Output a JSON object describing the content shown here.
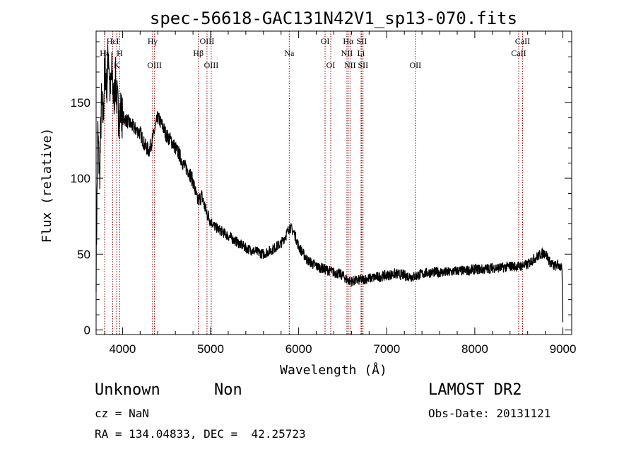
{
  "title": "spec-56618-GAC131N42V1_sp13-070.fits",
  "info": {
    "class": "Unknown",
    "subclass": "Non",
    "cz": "cz = NaN",
    "coords": "RA = 134.04833, DEC =  42.25723",
    "survey": "LAMOST DR2",
    "obs_date": "Obs-Date: 20131121"
  },
  "colors": {
    "spectrum": "#000000",
    "line_marker": "#8b0000",
    "axes": "#000000"
  },
  "chart_data": {
    "type": "line",
    "title": "spec-56618-GAC131N42V1_sp13-070.fits",
    "xlabel": "Wavelength (Å)",
    "ylabel": "Flux (relative)",
    "xlim": [
      3700,
      9100
    ],
    "ylim": [
      -3,
      197
    ],
    "xticks": [
      4000,
      5000,
      6000,
      7000,
      8000,
      9000
    ],
    "yticks": [
      0,
      50,
      100,
      150
    ],
    "grid": false,
    "series": [
      {
        "x": [
          3700,
          3720,
          3740,
          3760,
          3780,
          3800,
          3820,
          3840,
          3860,
          3880,
          3900,
          3920,
          3940,
          3960,
          3980,
          4000,
          4050,
          4100,
          4150,
          4200,
          4250,
          4300,
          4350,
          4400,
          4450,
          4500,
          4550,
          4600,
          4650,
          4700,
          4750,
          4800,
          4850,
          4900,
          4950,
          5000,
          5050,
          5100,
          5150,
          5200,
          5300,
          5400,
          5500,
          5600,
          5700,
          5800,
          5850,
          5900,
          5950,
          6000,
          6100,
          6200,
          6300,
          6400,
          6500,
          6550,
          6600,
          6700,
          6800,
          6900,
          7000,
          7100,
          7200,
          7300,
          7400,
          7500,
          7600,
          7700,
          7800,
          7900,
          8000,
          8100,
          8200,
          8300,
          8400,
          8500,
          8600,
          8650,
          8700,
          8750,
          8800,
          8850,
          8900,
          8950,
          8990,
          9000
        ],
        "y": [
          40,
          130,
          100,
          150,
          140,
          175,
          160,
          185,
          155,
          170,
          150,
          165,
          150,
          140,
          145,
          140,
          138,
          135,
          132,
          130,
          122,
          118,
          128,
          140,
          135,
          128,
          125,
          120,
          115,
          108,
          105,
          98,
          85,
          88,
          78,
          72,
          68,
          66,
          64,
          62,
          58,
          54,
          52,
          50,
          53,
          57,
          62,
          68,
          64,
          55,
          46,
          42,
          40,
          38,
          36,
          33,
          32,
          33,
          34,
          35,
          36,
          37,
          36,
          35,
          37,
          38,
          38,
          38,
          39,
          39,
          40,
          40,
          41,
          41,
          42,
          42,
          43,
          46,
          48,
          50,
          51,
          45,
          42,
          43,
          40,
          5
        ]
      }
    ],
    "lines": [
      {
        "label": "Hε",
        "x": 3797,
        "row": 2
      },
      {
        "label": "HεI",
        "x": 3889,
        "row": 1
      },
      {
        "label": "K",
        "x": 3934,
        "row": 3
      },
      {
        "label": "H",
        "x": 3968,
        "row": 2
      },
      {
        "label": "Hγ",
        "x": 4341,
        "row": 1
      },
      {
        "label": "OIII",
        "x": 4363,
        "row": 3
      },
      {
        "label": "Hβ",
        "x": 4861,
        "row": 2
      },
      {
        "label": "OIII",
        "x": 4959,
        "row": 1
      },
      {
        "label": "OIII",
        "x": 5007,
        "row": 3
      },
      {
        "label": "Na",
        "x": 5893,
        "row": 2
      },
      {
        "label": "OI",
        "x": 6300,
        "row": 1
      },
      {
        "label": "OI",
        "x": 6364,
        "row": 3
      },
      {
        "label": "NII",
        "x": 6548,
        "row": 2
      },
      {
        "label": "Hα",
        "x": 6563,
        "row": 1
      },
      {
        "label": "NII",
        "x": 6583,
        "row": 3
      },
      {
        "label": "Li",
        "x": 6708,
        "row": 2
      },
      {
        "label": "SII",
        "x": 6716,
        "row": 1
      },
      {
        "label": "SII",
        "x": 6731,
        "row": 3
      },
      {
        "label": "OII",
        "x": 7325,
        "row": 3
      },
      {
        "label": "CaII",
        "x": 8498,
        "row": 2
      },
      {
        "label": "CaII",
        "x": 8542,
        "row": 1
      }
    ]
  }
}
